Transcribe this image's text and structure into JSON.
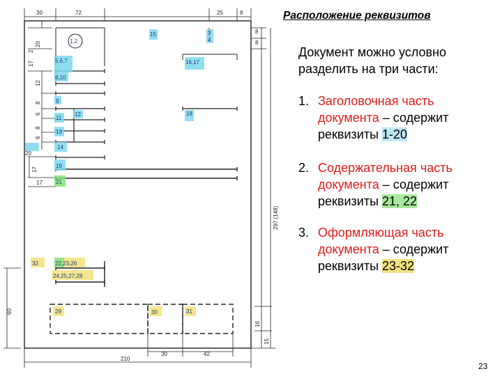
{
  "slide": {
    "title": "Расположение реквизитов",
    "intro": "Документ можно условно разделить на три части:",
    "parts": [
      {
        "number": "1.",
        "name_line1": "Заголовочная часть",
        "name_line2": "документа",
        "desc": " – содержит",
        "req_text": "реквизиты ",
        "range": "1-20",
        "highlight": "#bfe7f5"
      },
      {
        "number": "2.",
        "name_line1": "Содержательная часть",
        "name_line2": "документа",
        "desc": " – содержит",
        "req_text": "реквизиты ",
        "range": "21, 22",
        "highlight": "#a8e89c"
      },
      {
        "number": "3.",
        "name_line1": "Оформляющая часть",
        "name_line2": "документа",
        "desc": " – содержит",
        "req_text": "реквизиты ",
        "range": "23-32",
        "highlight": "#f2e27e"
      }
    ],
    "page_number": "23"
  },
  "diagram": {
    "dimensions": {
      "top_left_margin": "30",
      "top_block_width": "72",
      "top_right_block": "25",
      "top_right_margin": "8",
      "right_small_a": "8",
      "right_small_b": "8",
      "page_height": "297 (148)",
      "bottom_right_15": "15",
      "bottom_right_16": "16",
      "bottom_left_60": "60",
      "bottom_width": "210",
      "bottom_30": "30",
      "bottom_42": "42",
      "left_20": "20",
      "left_2": "2",
      "left_17a": "17",
      "left_12": "12",
      "left_8a": "8",
      "left_6a": "6",
      "left_8b": "8",
      "left_6b": "6",
      "left_17b": "17",
      "left_17c": "17",
      "left_20b": "20"
    },
    "requisites": {
      "r1_2": "1,2",
      "r15": "15",
      "r3": "3",
      "r4": "4",
      "r5_6_7": "5,6,7",
      "r16_17": "16,17",
      "r8_10": "8,10",
      "r9": "9",
      "r18": "18",
      "r11": "11",
      "r12": "12",
      "r13": "13",
      "r14": "14",
      "r19": "19",
      "r21": "21",
      "r32": "32",
      "r22_23_26": "22,23,26",
      "r24_25_27_28": "24,25,27,28",
      "r29": "29",
      "r30": "30",
      "r31": "31"
    },
    "colors": {
      "header": "#7fd8ee",
      "content": "#86e07a",
      "formatting": "#f3e07a"
    }
  }
}
